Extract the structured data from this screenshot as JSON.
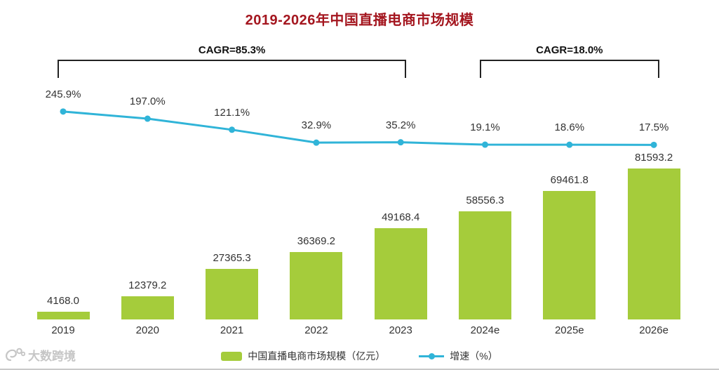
{
  "title": "2019-2026年中国直播电商市场规模",
  "chart_data": {
    "type": "combo",
    "categories": [
      "2019",
      "2020",
      "2021",
      "2022",
      "2023",
      "2024e",
      "2025e",
      "2026e"
    ],
    "series": [
      {
        "name": "中国直播电商市场规模（亿元）",
        "type": "bar",
        "unit": "亿元",
        "values": [
          4168.0,
          12379.2,
          27365.3,
          36369.2,
          49168.4,
          58556.3,
          69461.8,
          81593.2
        ],
        "data_labels": [
          "4168.0",
          "12379.2",
          "27365.3",
          "36369.2",
          "49168.4",
          "58556.3",
          "69461.8",
          "81593.2"
        ]
      },
      {
        "name": "增速（%）",
        "type": "line",
        "unit": "%",
        "values": [
          245.9,
          197.0,
          121.1,
          32.9,
          35.2,
          19.1,
          18.6,
          17.5
        ],
        "data_labels": [
          "245.9%",
          "197.0%",
          "121.1%",
          "32.9%",
          "35.2%",
          "19.1%",
          "18.6%",
          "17.5%"
        ]
      }
    ],
    "annotations": [
      {
        "text": "CAGR=85.3%",
        "from_index": 0,
        "to_index": 4
      },
      {
        "text": "CAGR=18.0%",
        "from_index": 5,
        "to_index": 7
      }
    ],
    "legend_position": "bottom",
    "gridlines": false,
    "ylim_bar": [
      0,
      86000
    ]
  },
  "legend": {
    "items": [
      {
        "label": "中国直播电商市场规模（亿元）",
        "type": "bar"
      },
      {
        "label": "增速（%）",
        "type": "line"
      }
    ]
  },
  "watermark": {
    "text": "大数跨境"
  },
  "colors": {
    "bar": "#a5cc3b",
    "line": "#30b4d8",
    "title": "#a4161f",
    "text": "#333333",
    "bracket": "#222222",
    "watermark": "#c6c6c6",
    "divider": "#c9c9c9"
  }
}
